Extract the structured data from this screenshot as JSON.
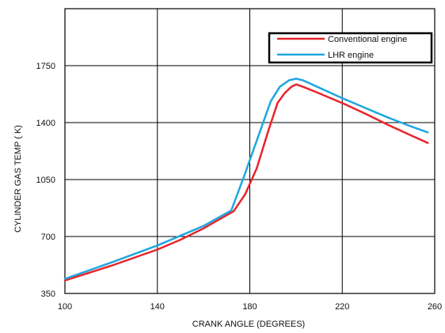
{
  "chart_data": {
    "type": "line",
    "title": "",
    "xlabel": "CRANK ANGLE (DEGREES)",
    "ylabel": "CYLINDER GAS TEMP ( K)",
    "xlim": [
      100,
      260
    ],
    "ylim": [
      350,
      2100
    ],
    "x_ticks": [
      100,
      140,
      180,
      220,
      260
    ],
    "y_ticks": [
      350,
      700,
      1050,
      1400,
      1750
    ],
    "grid": true,
    "legend_position": "top-right",
    "series": [
      {
        "name": "Conventional engine",
        "color": "#e8242c",
        "x": [
          100,
          120,
          140,
          150,
          160,
          173,
          178,
          183,
          188,
          192,
          195,
          198,
          200,
          203,
          210,
          220,
          230,
          240,
          250,
          257
        ],
        "y": [
          430,
          520,
          620,
          680,
          750,
          855,
          960,
          1120,
          1350,
          1520,
          1580,
          1620,
          1635,
          1620,
          1580,
          1520,
          1455,
          1385,
          1320,
          1275
        ]
      },
      {
        "name": "LHR engine",
        "color": "#1ea7e0",
        "x": [
          100,
          120,
          140,
          160,
          172,
          178,
          184,
          189,
          193,
          197,
          200,
          203,
          210,
          220,
          230,
          240,
          250,
          257
        ],
        "y": [
          440,
          540,
          645,
          765,
          860,
          1090,
          1330,
          1530,
          1620,
          1660,
          1670,
          1660,
          1615,
          1550,
          1490,
          1430,
          1375,
          1340
        ]
      }
    ]
  }
}
